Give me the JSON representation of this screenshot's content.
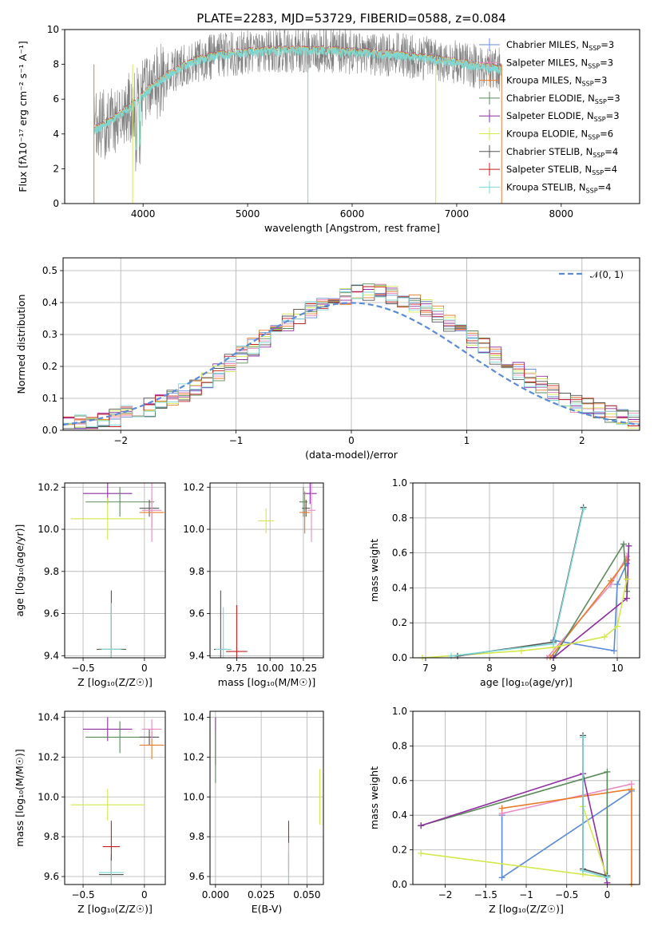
{
  "chart_data": [
    {
      "type": "line",
      "title": "PLATE=2283, MJD=53729, FIBERID=0588, z=0.084",
      "xlabel": "wavelength [Angstrom, rest frame]",
      "ylabel": "Flux [fλ10⁻¹⁷ erg cm⁻² s⁻¹ A⁻¹]",
      "xlim": [
        3250,
        8750
      ],
      "ylim": [
        0,
        10
      ],
      "xticks": [
        4000,
        5000,
        6000,
        7000,
        8000
      ],
      "yticks": [
        0,
        2,
        4,
        6,
        8,
        10
      ],
      "grid": false,
      "legend_position": "right",
      "legend": [
        {
          "name": "Chabrier MILES, N",
          "sub": "SSP",
          "tail": "=3",
          "color": "#6a8fd6"
        },
        {
          "name": "Salpeter MILES, N",
          "sub": "SSP",
          "tail": "=3",
          "color": "#e98bc1"
        },
        {
          "name": "Kroupa MILES, N",
          "sub": "SSP",
          "tail": "=3",
          "color": "#e87c2c"
        },
        {
          "name": "Chabrier ELODIE, N",
          "sub": "SSP",
          "tail": "=3",
          "color": "#5b8a5b"
        },
        {
          "name": "Salpeter ELODIE, N",
          "sub": "SSP",
          "tail": "=3",
          "color": "#8e2ea0"
        },
        {
          "name": "Kroupa ELODIE, N",
          "sub": "SSP",
          "tail": "=6",
          "color": "#d3e84c"
        },
        {
          "name": "Chabrier STELIB, N",
          "sub": "SSP",
          "tail": "=4",
          "color": "#555555"
        },
        {
          "name": "Salpeter STELIB, N",
          "sub": "SSP",
          "tail": "=4",
          "color": "#c81e1e"
        },
        {
          "name": "Kroupa STELIB, N",
          "sub": "SSP",
          "tail": "=4",
          "color": "#7fd6d6"
        }
      ],
      "data_color": "#808080",
      "model_color": "#7fd6d6",
      "spectrum_range": [
        3530,
        7430
      ],
      "sampled_continuum": {
        "x": [
          3530,
          3700,
          3900,
          4100,
          4300,
          4500,
          4700,
          5000,
          5300,
          5600,
          6000,
          6500,
          7000,
          7400
        ],
        "y": [
          4.2,
          4.8,
          5.6,
          6.8,
          7.6,
          8.2,
          8.5,
          8.7,
          8.8,
          8.8,
          8.7,
          8.5,
          8.1,
          7.7
        ]
      }
    },
    {
      "type": "line",
      "xlabel": "(data-model)/error",
      "ylabel": "Normed distribution",
      "xlim": [
        -2.5,
        2.5
      ],
      "ylim": [
        0,
        0.54
      ],
      "xticks": [
        -2,
        -1,
        0,
        1,
        2
      ],
      "yticks": [
        0.0,
        0.1,
        0.2,
        0.3,
        0.4,
        0.5
      ],
      "grid": true,
      "legend_position": "top-right",
      "legend": [
        {
          "name": "𝒩(0, 1)",
          "color": "#5b8bd6",
          "style": "dashed"
        }
      ],
      "hist_bin_width": 0.1,
      "series_colors": [
        "#6a8fd6",
        "#e98bc1",
        "#e87c2c",
        "#5b8a5b",
        "#8e2ea0",
        "#d3e84c",
        "#555555",
        "#c81e1e",
        "#7fd6d6"
      ]
    },
    {
      "type": "scatter",
      "xlabel": "Z [log₁₀(Z/Z☉)]",
      "ylabel": "age  [log₁₀(age/yr)]",
      "xlim": [
        -0.65,
        0.17
      ],
      "ylim": [
        9.39,
        10.22
      ],
      "xticks": [
        -0.5,
        0.0
      ],
      "yticks": [
        9.4,
        9.6,
        9.8,
        10.0,
        10.2
      ],
      "grid": true,
      "points": [
        {
          "x": -0.27,
          "y": 9.43,
          "ex": 0.12,
          "ey": 0.28,
          "color": "#555555"
        },
        {
          "x": -0.27,
          "y": 9.43,
          "ex": 0.1,
          "ey": 0.2,
          "color": "#5b8a5b"
        },
        {
          "x": -0.27,
          "y": 9.43,
          "ex": 0.08,
          "ey": 0.22,
          "color": "#7fd6d6"
        },
        {
          "x": -0.3,
          "y": 10.17,
          "ex": 0.2,
          "ey": 0.05,
          "color": "#8e2ea0"
        },
        {
          "x": -0.2,
          "y": 10.13,
          "ex": 0.28,
          "ey": 0.07,
          "color": "#5b8a5b"
        },
        {
          "x": 0.04,
          "y": 10.1,
          "ex": 0.08,
          "ey": 0.04,
          "color": "#555555"
        },
        {
          "x": 0.06,
          "y": 10.08,
          "ex": 0.1,
          "ey": 0.07,
          "color": "#e87c2c"
        },
        {
          "x": 0.06,
          "y": 10.09,
          "ex": 0.08,
          "ey": 0.15,
          "color": "#e98bc1"
        },
        {
          "x": -0.3,
          "y": 10.05,
          "ex": 0.3,
          "ey": 0.1,
          "color": "#d3e84c"
        }
      ]
    },
    {
      "type": "scatter",
      "xlabel": "mass [log₁₀(M/M☉)]",
      "ylabel": "",
      "xlim": [
        9.55,
        10.4
      ],
      "ylim": [
        9.39,
        10.22
      ],
      "xticks": [
        9.75,
        10.0,
        10.25
      ],
      "xticklabels": [
        "9.75",
        "10.00",
        "10.25"
      ],
      "yticks": [
        9.4,
        9.6,
        9.8,
        10.0,
        10.2
      ],
      "grid": true,
      "points": [
        {
          "x": 9.63,
          "y": 9.43,
          "ex": 0.05,
          "ey": 0.28,
          "color": "#555555"
        },
        {
          "x": 9.65,
          "y": 9.43,
          "ex": 0.06,
          "ey": 0.2,
          "color": "#7fd6d6"
        },
        {
          "x": 9.75,
          "y": 9.42,
          "ex": 0.08,
          "ey": 0.22,
          "color": "#c81e1e"
        },
        {
          "x": 10.3,
          "y": 10.17,
          "ex": 0.05,
          "ey": 0.05,
          "color": "#8e2ea0"
        },
        {
          "x": 10.25,
          "y": 10.13,
          "ex": 0.03,
          "ey": 0.07,
          "color": "#5b8a5b"
        },
        {
          "x": 10.27,
          "y": 10.1,
          "ex": 0.03,
          "ey": 0.04,
          "color": "#555555"
        },
        {
          "x": 10.26,
          "y": 10.08,
          "ex": 0.04,
          "ey": 0.1,
          "color": "#e87c2c"
        },
        {
          "x": 10.31,
          "y": 10.09,
          "ex": 0.03,
          "ey": 0.15,
          "color": "#e98bc1"
        },
        {
          "x": 9.97,
          "y": 10.04,
          "ex": 0.06,
          "ey": 0.06,
          "color": "#d3e84c"
        }
      ]
    },
    {
      "type": "line",
      "xlabel": "age  [log₁₀(age/yr)]",
      "ylabel": "mass weight",
      "xlim": [
        6.8,
        10.35
      ],
      "ylim": [
        0,
        1.0
      ],
      "xticks": [
        7,
        8,
        9,
        10
      ],
      "yticks": [
        0.0,
        0.2,
        0.4,
        0.6,
        0.8,
        1.0
      ],
      "grid": true,
      "series": [
        {
          "name": "Chabrier MILES",
          "color": "#5b8bd6",
          "x": [
            9.0,
            9.95,
            10.0,
            10.15
          ],
          "y": [
            0.1,
            0.04,
            0.42,
            0.54
          ]
        },
        {
          "name": "Salpeter MILES",
          "color": "#e98bc1",
          "x": [
            8.9,
            9.9,
            10.15
          ],
          "y": [
            0.0,
            0.42,
            0.58
          ]
        },
        {
          "name": "Kroupa MILES",
          "color": "#e87c2c",
          "x": [
            8.95,
            9.9,
            10.15
          ],
          "y": [
            0.0,
            0.44,
            0.56
          ]
        },
        {
          "name": "Chabrier ELODIE",
          "color": "#5b8a5b",
          "x": [
            9.0,
            10.1,
            10.15
          ],
          "y": [
            0.0,
            0.65,
            0.38
          ]
        },
        {
          "name": "Salpeter ELODIE",
          "color": "#8e2ea0",
          "x": [
            9.0,
            10.15,
            10.18
          ],
          "y": [
            0.0,
            0.34,
            0.64
          ]
        },
        {
          "name": "Kroupa ELODIE",
          "color": "#d3e84c",
          "x": [
            6.95,
            8.5,
            9.0,
            9.8,
            10.0,
            10.15
          ],
          "y": [
            0.0,
            0.04,
            0.06,
            0.12,
            0.18,
            0.45
          ]
        },
        {
          "name": "Chabrier STELIB",
          "color": "#555555",
          "x": [
            7.5,
            9.0,
            9.47
          ],
          "y": [
            0.01,
            0.09,
            0.86
          ]
        },
        {
          "name": "Kroupa STELIB",
          "color": "#7fd6d6",
          "x": [
            7.4,
            9.0,
            9.47
          ],
          "y": [
            0.01,
            0.08,
            0.85
          ]
        }
      ]
    },
    {
      "type": "scatter",
      "xlabel": "Z [log₁₀(Z/Z☉)]",
      "ylabel": "mass [log₁₀(M/M☉)]",
      "xlim": [
        -0.65,
        0.17
      ],
      "ylim": [
        9.56,
        10.43
      ],
      "xticks": [
        -0.5,
        0.0
      ],
      "yticks": [
        9.6,
        9.8,
        10.0,
        10.2,
        10.4
      ],
      "grid": true,
      "points": [
        {
          "x": -0.3,
          "y": 10.34,
          "ex": 0.2,
          "ey": 0.06,
          "color": "#8e2ea0"
        },
        {
          "x": -0.2,
          "y": 10.3,
          "ex": 0.28,
          "ey": 0.08,
          "color": "#5b8a5b"
        },
        {
          "x": 0.04,
          "y": 10.3,
          "ex": 0.08,
          "ey": 0.04,
          "color": "#555555"
        },
        {
          "x": 0.06,
          "y": 10.26,
          "ex": 0.1,
          "ey": 0.07,
          "color": "#e87c2c"
        },
        {
          "x": 0.06,
          "y": 10.34,
          "ex": 0.08,
          "ey": 0.05,
          "color": "#e98bc1"
        },
        {
          "x": -0.3,
          "y": 9.96,
          "ex": 0.3,
          "ey": 0.08,
          "color": "#d3e84c"
        },
        {
          "x": -0.27,
          "y": 9.75,
          "ex": 0.07,
          "ey": 0.13,
          "color": "#c81e1e"
        },
        {
          "x": -0.27,
          "y": 9.61,
          "ex": 0.1,
          "ey": 0.1,
          "color": "#555555"
        },
        {
          "x": -0.27,
          "y": 9.62,
          "ex": 0.1,
          "ey": 0.06,
          "color": "#7fd6d6"
        }
      ]
    },
    {
      "type": "scatter",
      "xlabel": "E(B-V)",
      "ylabel": "",
      "xlim": [
        -0.003,
        0.059
      ],
      "ylim": [
        9.56,
        10.43
      ],
      "xticks": [
        0.0,
        0.025,
        0.05
      ],
      "xticklabels": [
        "0.000",
        "0.025",
        "0.050"
      ],
      "yticks": [
        9.6,
        9.8,
        10.0,
        10.2,
        10.4
      ],
      "grid": true,
      "points": [
        {
          "x": 0.0,
          "y": 10.28,
          "ex": 0.0,
          "ey": 0.12,
          "color": "#8e2ea0"
        },
        {
          "x": 0.0,
          "y": 10.2,
          "ex": 0.0,
          "ey": 0.13,
          "color": "#5b8a5b"
        },
        {
          "x": 0.057,
          "y": 10.0,
          "ex": 0.0,
          "ey": 0.14,
          "color": "#d3e84c"
        },
        {
          "x": 0.04,
          "y": 9.75,
          "ex": 0.0,
          "ey": 0.13,
          "color": "#c81e1e"
        },
        {
          "x": 0.04,
          "y": 9.62,
          "ex": 0.0,
          "ey": 0.1,
          "color": "#555555"
        },
        {
          "x": 0.04,
          "y": 9.65,
          "ex": 0.0,
          "ey": 0.12,
          "color": "#7fd6d6"
        }
      ]
    },
    {
      "type": "line",
      "xlabel": "Z [log₁₀(Z/Z☉)]",
      "ylabel": "mass weight",
      "xlim": [
        -2.4,
        0.4
      ],
      "ylim": [
        0,
        1.0
      ],
      "xticks": [
        -2.0,
        -1.5,
        -1.0,
        -0.5,
        0.0
      ],
      "yticks": [
        0.0,
        0.2,
        0.4,
        0.6,
        0.8,
        1.0
      ],
      "grid": true,
      "series": [
        {
          "name": "Chabrier MILES",
          "color": "#5b8bd6",
          "x": [
            -1.3,
            -1.3,
            0.3
          ],
          "y": [
            0.4,
            0.04,
            0.54
          ]
        },
        {
          "name": "Salpeter MILES",
          "color": "#e98bc1",
          "x": [
            -1.3,
            0.3
          ],
          "y": [
            0.41,
            0.58
          ]
        },
        {
          "name": "Kroupa MILES",
          "color": "#e87c2c",
          "x": [
            -1.3,
            0.3,
            0.3
          ],
          "y": [
            0.44,
            0.55,
            0.0
          ]
        },
        {
          "name": "Chabrier ELODIE",
          "color": "#5b8a5b",
          "x": [
            -2.3,
            0.0,
            0.0
          ],
          "y": [
            0.34,
            0.65,
            0.04
          ]
        },
        {
          "name": "Salpeter ELODIE",
          "color": "#8e2ea0",
          "x": [
            -2.3,
            -0.3,
            0.0
          ],
          "y": [
            0.34,
            0.64,
            0.01
          ]
        },
        {
          "name": "Kroupa ELODIE",
          "color": "#d3e84c",
          "x": [
            -2.3,
            0.0,
            -0.3,
            -0.3
          ],
          "y": [
            0.18,
            0.04,
            0.45,
            0.06
          ]
        },
        {
          "name": "Chabrier STELIB",
          "color": "#555555",
          "x": [
            -0.3,
            -0.3,
            0.0
          ],
          "y": [
            0.86,
            0.09,
            0.05
          ]
        },
        {
          "name": "Kroupa STELIB",
          "color": "#7fd6d6",
          "x": [
            -0.3,
            -0.3,
            0.0
          ],
          "y": [
            0.85,
            0.08,
            0.04
          ]
        }
      ]
    }
  ]
}
